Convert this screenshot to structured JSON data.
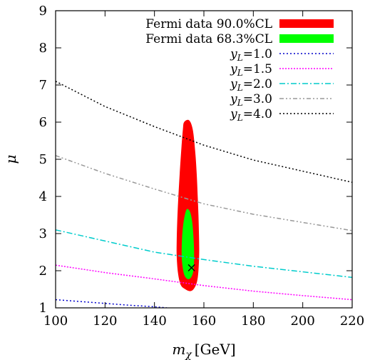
{
  "chart_data": {
    "type": "line",
    "title": "",
    "xlabel": {
      "main": "m",
      "sub": "χ",
      "unit": "[GeV]"
    },
    "ylabel": "μ",
    "xlim": [
      100,
      220
    ],
    "ylim": [
      1,
      9
    ],
    "x_ticks": [
      100,
      120,
      140,
      160,
      180,
      200,
      220
    ],
    "y_ticks": [
      1,
      2,
      3,
      4,
      5,
      6,
      7,
      8,
      9
    ],
    "grid": false,
    "legend_position": "top-right",
    "regions": [
      {
        "name": "Fermi data 90.0%CL",
        "color": "#ff0000",
        "points": [
          [
            152,
            6.0
          ],
          [
            154,
            6.05
          ],
          [
            155.5,
            5.8
          ],
          [
            156.5,
            5.2
          ],
          [
            157.1,
            4.6
          ],
          [
            157.5,
            4.0
          ],
          [
            157.8,
            3.5
          ],
          [
            158.0,
            3.0
          ],
          [
            158.1,
            2.5
          ],
          [
            157.8,
            2.0
          ],
          [
            157.2,
            1.7
          ],
          [
            156.0,
            1.52
          ],
          [
            154.5,
            1.45
          ],
          [
            152.5,
            1.5
          ],
          [
            150.6,
            1.62
          ],
          [
            149.5,
            1.95
          ],
          [
            149.0,
            2.4
          ],
          [
            149.0,
            2.8
          ],
          [
            149.2,
            3.3
          ],
          [
            149.6,
            3.9
          ],
          [
            150.2,
            4.6
          ],
          [
            150.9,
            5.3
          ],
          [
            151.5,
            5.8
          ]
        ]
      },
      {
        "name": "Fermi data 68.3%CL",
        "color": "#00ff00",
        "points": [
          [
            153,
            3.65
          ],
          [
            154.3,
            3.6
          ],
          [
            155.2,
            3.35
          ],
          [
            155.7,
            3.0
          ],
          [
            156.0,
            2.6
          ],
          [
            156.0,
            2.2
          ],
          [
            155.6,
            1.95
          ],
          [
            154.6,
            1.8
          ],
          [
            153.3,
            1.78
          ],
          [
            152.0,
            1.9
          ],
          [
            151.2,
            2.2
          ],
          [
            151.0,
            2.5
          ],
          [
            151.1,
            2.8
          ],
          [
            151.4,
            3.1
          ],
          [
            152.0,
            3.4
          ]
        ]
      }
    ],
    "series": [
      {
        "name": "yL=1.0",
        "label_main": "y",
        "label_sub": "L",
        "label_value": "=1.0",
        "color": "#0000cc",
        "dash": "2,3",
        "x": [
          100,
          110,
          120,
          130,
          140,
          145
        ],
        "y": [
          1.22,
          1.17,
          1.12,
          1.07,
          1.03,
          1.0
        ]
      },
      {
        "name": "yL=1.5",
        "label_main": "y",
        "label_sub": "L",
        "label_value": "=1.5",
        "color": "#ff00ff",
        "dash": "2,2",
        "x": [
          100,
          120,
          140,
          160,
          180,
          200,
          220
        ],
        "y": [
          2.15,
          1.95,
          1.78,
          1.6,
          1.45,
          1.33,
          1.22
        ]
      },
      {
        "name": "yL=2.0",
        "label_main": "y",
        "label_sub": "L",
        "label_value": "=2.0",
        "color": "#00cccc",
        "dash": "8,3,2,3",
        "x": [
          100,
          120,
          140,
          160,
          180,
          200,
          220
        ],
        "y": [
          3.1,
          2.8,
          2.5,
          2.3,
          2.12,
          1.97,
          1.82
        ]
      },
      {
        "name": "yL=3.0",
        "label_main": "y",
        "label_sub": "L",
        "label_value": "=3.0",
        "color": "#999999",
        "dash": "6,3,2,3,2,3",
        "x": [
          100,
          120,
          140,
          160,
          180,
          200,
          220
        ],
        "y": [
          5.1,
          4.62,
          4.2,
          3.8,
          3.52,
          3.3,
          3.08
        ]
      },
      {
        "name": "yL=4.0",
        "label_main": "y",
        "label_sub": "L",
        "label_value": "=4.0",
        "color": "#000000",
        "dash": "2,3",
        "x": [
          100,
          120,
          140,
          160,
          180,
          200,
          220
        ],
        "y": [
          7.1,
          6.42,
          5.88,
          5.38,
          4.98,
          4.68,
          4.38
        ]
      }
    ],
    "best_fit_marker": {
      "symbol": "×",
      "x": 155,
      "y": 2.07
    }
  }
}
